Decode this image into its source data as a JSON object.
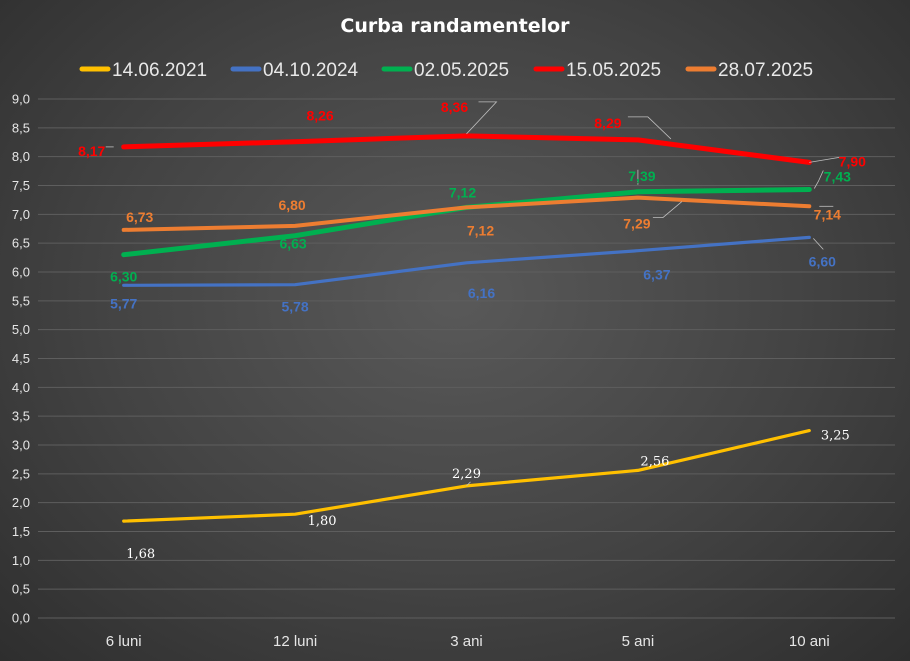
{
  "chart_data": {
    "type": "line",
    "title": "Curba randamentelor",
    "xlabel": "",
    "ylabel": "",
    "categories": [
      "6 luni",
      "12 luni",
      "3 ani",
      "5 ani",
      "10 ani"
    ],
    "ylim": [
      0,
      9
    ],
    "ytick_step": 0.5,
    "yticks": [
      "0,0",
      "0,5",
      "1,0",
      "1,5",
      "2,0",
      "2,5",
      "3,0",
      "3,5",
      "4,0",
      "4,5",
      "5,0",
      "5,5",
      "6,0",
      "6,5",
      "7,0",
      "7,5",
      "8,0",
      "8,5",
      "9,0"
    ],
    "grid": true,
    "legend_position": "top",
    "series": [
      {
        "name": "14.06.2021",
        "color": "#ffc000",
        "values": [
          1.68,
          1.8,
          2.29,
          2.56,
          3.25
        ],
        "labels": [
          "1,68",
          "1,80",
          "2,29",
          "2,56",
          "3,25"
        ],
        "label_color": "#ffffff"
      },
      {
        "name": "04.10.2024",
        "color": "#4472c4",
        "values": [
          5.77,
          5.78,
          6.16,
          6.37,
          6.6
        ],
        "labels": [
          "5,77",
          "5,78",
          "6,16",
          "6,37",
          "6,60"
        ],
        "label_color": "#4472c4"
      },
      {
        "name": "02.05.2025",
        "color": "#00b050",
        "values": [
          6.3,
          6.63,
          7.12,
          7.39,
          7.43
        ],
        "labels": [
          "6,30",
          "6,63",
          "7,12",
          "7,39",
          "7,43"
        ],
        "label_color": "#00b050"
      },
      {
        "name": "15.05.2025",
        "color": "#ff0000",
        "values": [
          8.17,
          8.26,
          8.36,
          8.29,
          7.9
        ],
        "labels": [
          "8,17",
          "8,26",
          "8,36",
          "8,29",
          "7,90"
        ],
        "label_color": "#ff0000"
      },
      {
        "name": "28.07.2025",
        "color": "#ed7d31",
        "values": [
          6.73,
          6.8,
          7.12,
          7.29,
          7.14
        ],
        "labels": [
          "6,73",
          "6,80",
          "7,12",
          "7,29",
          "7,14"
        ],
        "label_color": "#ed7d31"
      }
    ]
  }
}
